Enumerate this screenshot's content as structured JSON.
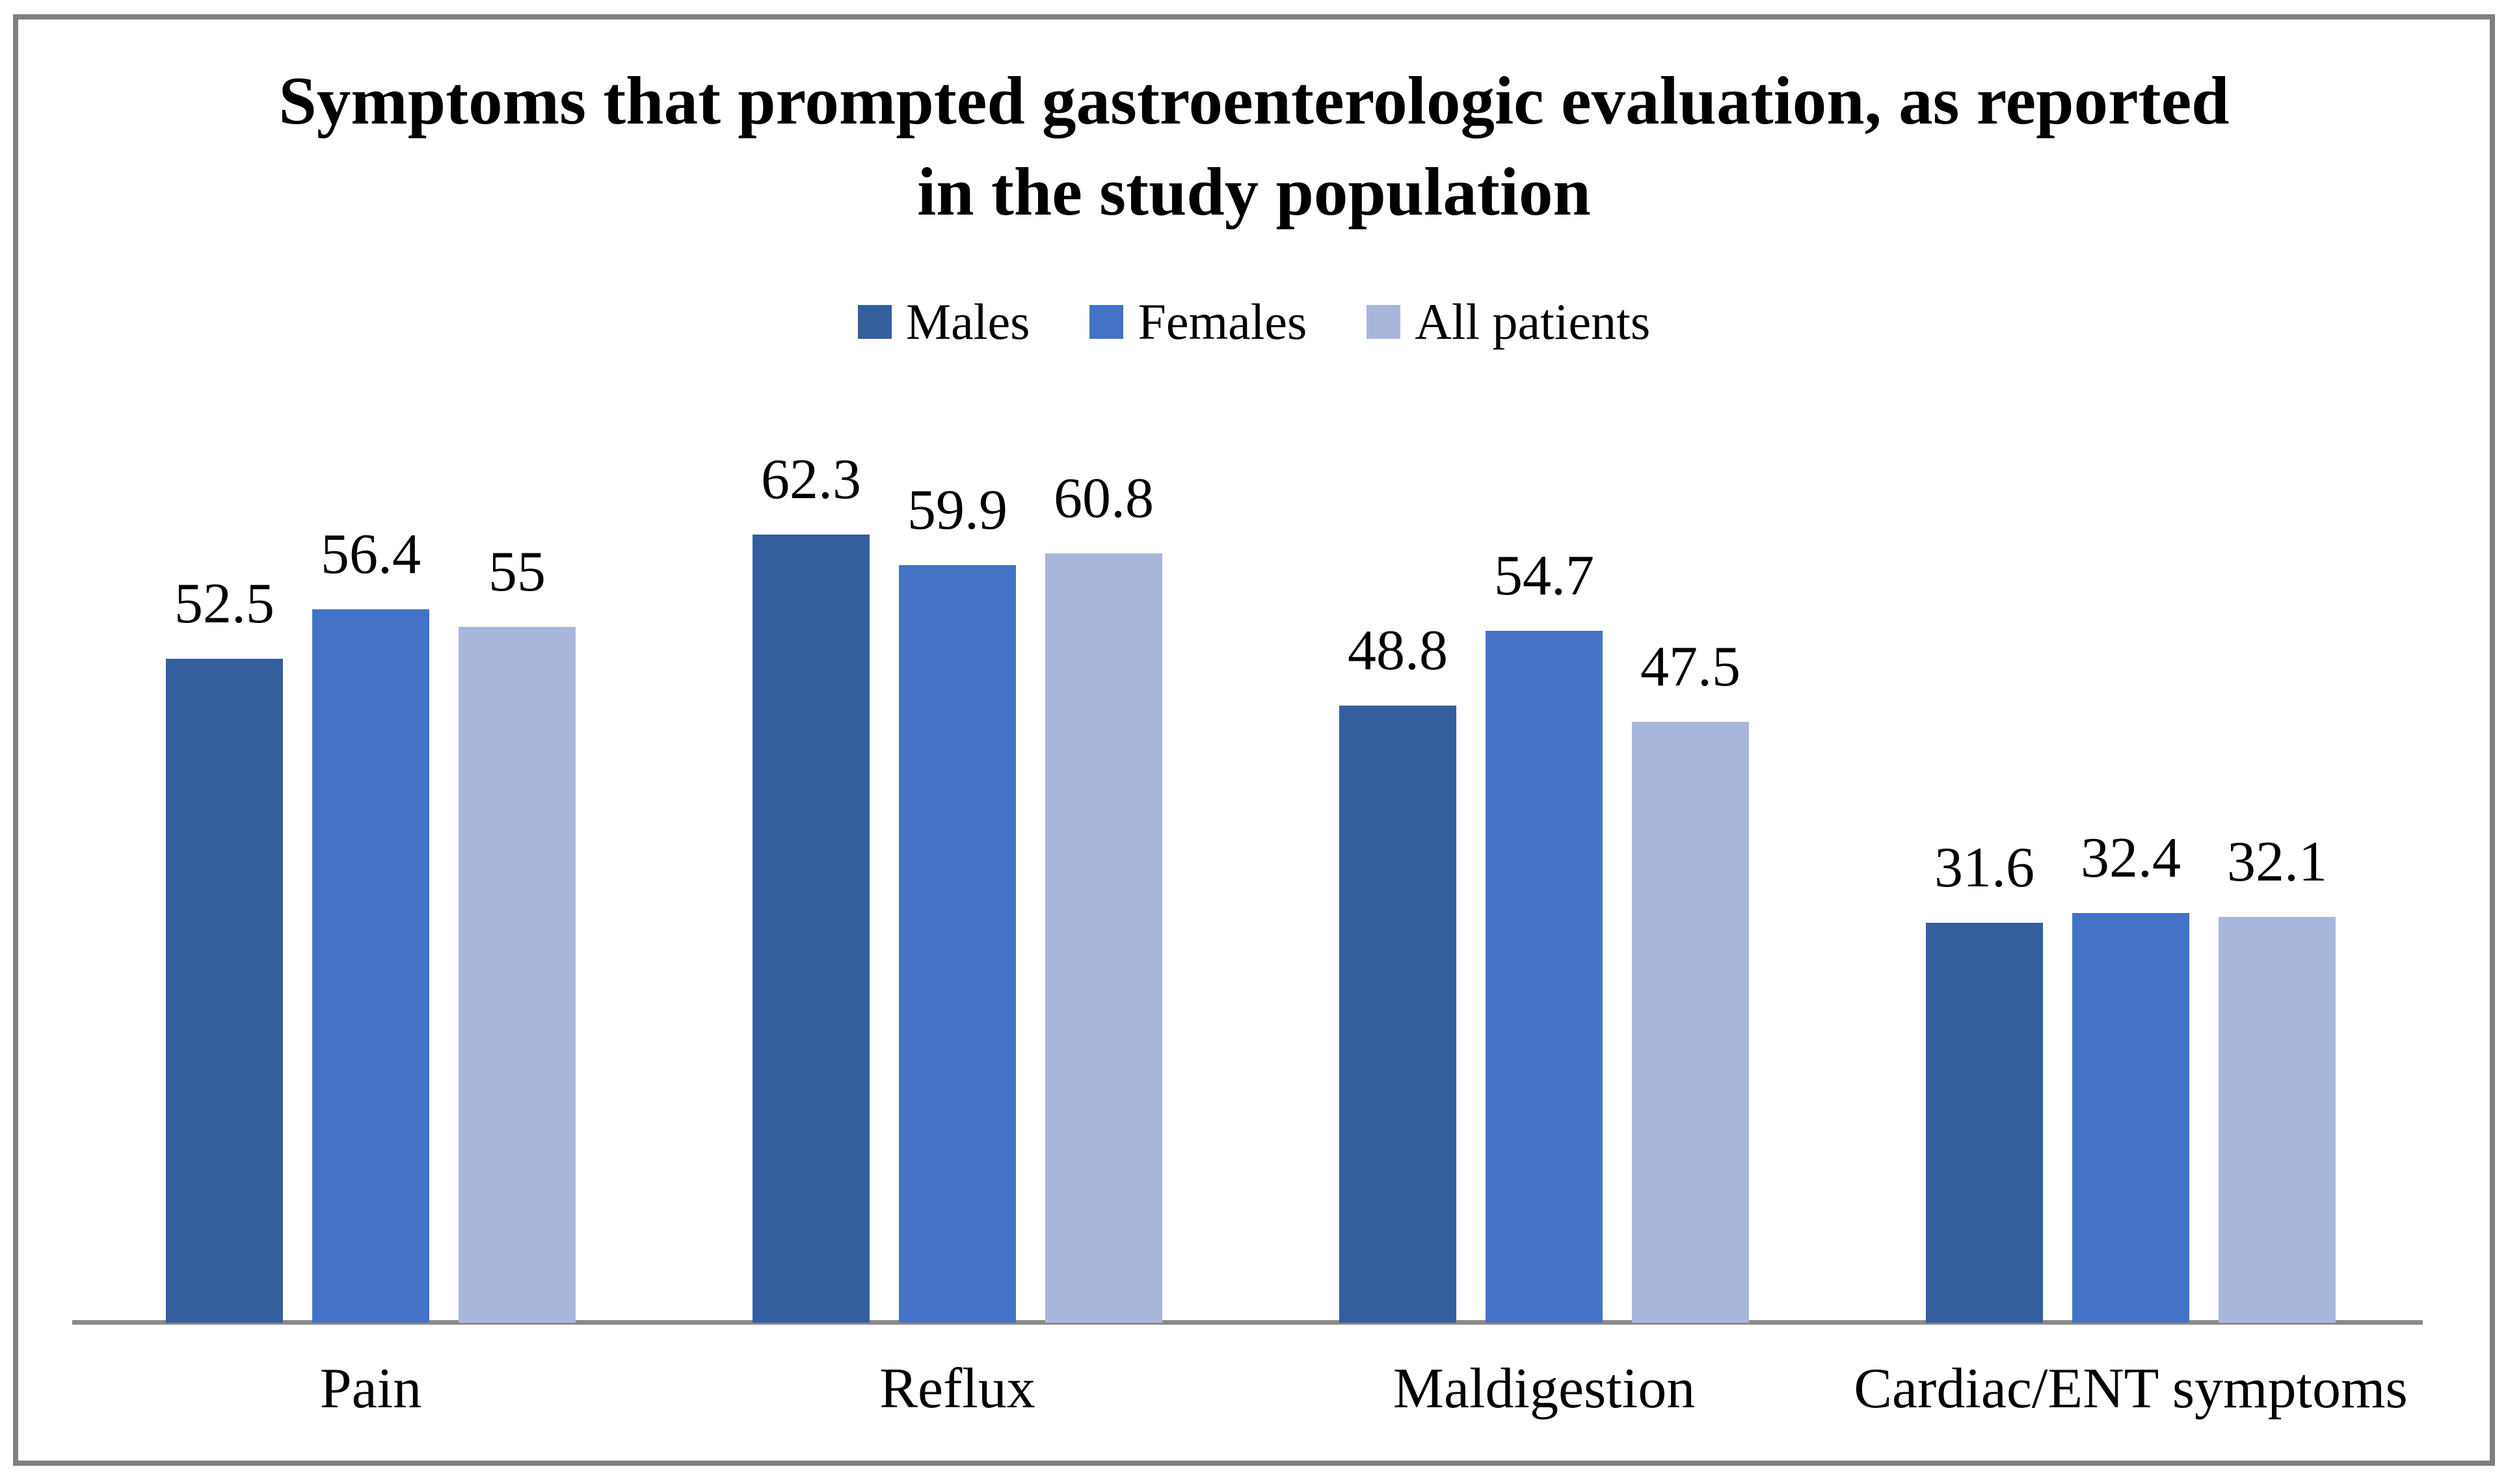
{
  "chart_data": {
    "type": "bar",
    "title": "Symptoms that prompted gastroenterologic evaluation, as reported in the study population",
    "title_line1": "Symptoms that prompted gastroenterologic evaluation, as reported",
    "title_line2": "in the study population",
    "categories": [
      "Pain",
      "Reflux",
      "Maldigestion",
      "Cardiac/ENT symptoms"
    ],
    "series": [
      {
        "name": "Males",
        "color": "#355E9F",
        "values": [
          52.5,
          62.3,
          48.8,
          31.6
        ]
      },
      {
        "name": "Females",
        "color": "#4472C7",
        "values": [
          56.4,
          59.9,
          54.7,
          32.4
        ]
      },
      {
        "name": "All patients",
        "color": "#A9B6DB",
        "values": [
          55,
          60.8,
          47.5,
          32.1
        ]
      }
    ],
    "value_labels_shown": true,
    "xlabel": "",
    "ylabel": "",
    "ylim": [
      0,
      70
    ],
    "y_axis_visible": false,
    "gridlines": false,
    "legend_position": "top"
  },
  "colors": {
    "frame_border": "#7F7F7F",
    "axis_line": "#898989",
    "text": "#000000",
    "background": "#FFFFFF"
  }
}
